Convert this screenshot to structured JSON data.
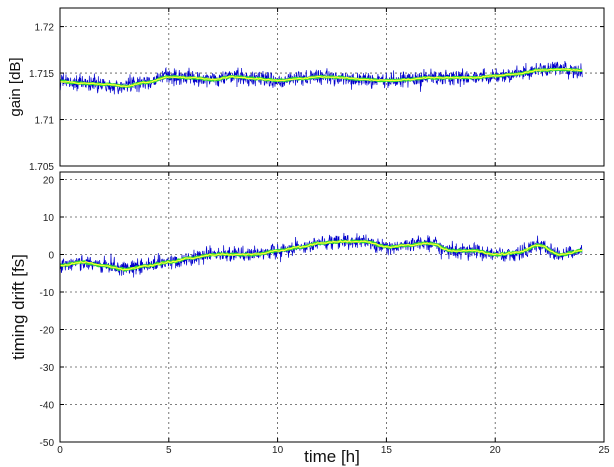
{
  "chart_data": [
    {
      "type": "line",
      "title": "",
      "xlabel": "",
      "ylabel": "gain [dB]",
      "xlim": [
        0,
        25
      ],
      "ylim": [
        1.705,
        1.722
      ],
      "xticks": [
        0,
        5,
        10,
        15,
        20,
        25
      ],
      "xtick_labels": [
        "",
        "",
        "",
        "",
        "",
        ""
      ],
      "yticks": [
        1.705,
        1.71,
        1.715,
        1.72
      ],
      "ytick_labels": [
        "1.705",
        "1.71",
        "1.715",
        "1.72"
      ],
      "grid": true,
      "legend": "none",
      "x_range": [
        0,
        24
      ],
      "series": [
        {
          "color": "#0000cc",
          "style": "raw-noisy",
          "x": [
            0,
            1,
            2,
            3,
            4,
            5,
            6,
            7,
            8,
            9,
            10,
            11,
            12,
            13,
            14,
            15,
            16,
            17,
            18,
            19,
            20,
            21,
            22,
            23,
            24
          ],
          "values": [
            1.7141,
            1.7139,
            1.7138,
            1.7136,
            1.714,
            1.7146,
            1.7145,
            1.7143,
            1.7146,
            1.7144,
            1.7142,
            1.7144,
            1.7146,
            1.7145,
            1.7143,
            1.7142,
            1.7143,
            1.7145,
            1.7145,
            1.7145,
            1.7147,
            1.7149,
            1.7153,
            1.7154,
            1.7153
          ],
          "noise_amplitude": 0.0012
        },
        {
          "color": "#33dd33",
          "style": "smoothed",
          "x": [
            0,
            1,
            2,
            3,
            4,
            5,
            6,
            7,
            8,
            9,
            10,
            11,
            12,
            13,
            14,
            15,
            16,
            17,
            18,
            19,
            20,
            21,
            22,
            23,
            24
          ],
          "values": [
            1.7141,
            1.7139,
            1.7138,
            1.7136,
            1.714,
            1.7146,
            1.7145,
            1.7143,
            1.7146,
            1.7144,
            1.7142,
            1.7144,
            1.7146,
            1.7145,
            1.7143,
            1.7142,
            1.7143,
            1.7145,
            1.7145,
            1.7145,
            1.7147,
            1.7149,
            1.7153,
            1.7154,
            1.7153
          ]
        },
        {
          "color": "#ffff33",
          "style": "smoothed",
          "x": [
            0,
            1,
            2,
            3,
            4,
            5,
            6,
            7,
            8,
            9,
            10,
            11,
            12,
            13,
            14,
            15,
            16,
            17,
            18,
            19,
            20,
            21,
            22,
            23,
            24
          ],
          "values": [
            1.7141,
            1.7139,
            1.7138,
            1.7136,
            1.714,
            1.7146,
            1.7145,
            1.7143,
            1.7146,
            1.7144,
            1.7142,
            1.7144,
            1.7146,
            1.7145,
            1.7143,
            1.7142,
            1.7143,
            1.7145,
            1.7145,
            1.7145,
            1.7147,
            1.7149,
            1.7153,
            1.7154,
            1.7153
          ]
        }
      ]
    },
    {
      "type": "line",
      "title": "",
      "xlabel": "time [h]",
      "ylabel": "timing drift [fs]",
      "xlim": [
        0,
        25
      ],
      "ylim": [
        -50,
        22
      ],
      "xticks": [
        0,
        5,
        10,
        15,
        20,
        25
      ],
      "xtick_labels": [
        "0",
        "5",
        "10",
        "15",
        "20",
        "25"
      ],
      "yticks": [
        -50,
        -40,
        -30,
        -20,
        -10,
        0,
        10,
        20
      ],
      "ytick_labels": [
        "-50",
        "-40",
        "-30",
        "-20",
        "-10",
        "0",
        "10",
        "20"
      ],
      "grid": true,
      "legend": "none",
      "x_range": [
        0,
        24
      ],
      "series": [
        {
          "color": "#0000cc",
          "style": "raw-noisy",
          "x": [
            0,
            1,
            2,
            3,
            4,
            5,
            6,
            7,
            8,
            9,
            10,
            11,
            12,
            13,
            14,
            15,
            16,
            17,
            18,
            19,
            20,
            21,
            22,
            23,
            24
          ],
          "values": [
            -3,
            -2,
            -3,
            -4,
            -3,
            -2,
            -1,
            0,
            0,
            0,
            1,
            2,
            3,
            3.5,
            3.5,
            2,
            2.5,
            3,
            1,
            1,
            0,
            0.5,
            2.5,
            0,
            1
          ],
          "noise_amplitude": 3
        },
        {
          "color": "#33dd33",
          "style": "smoothed",
          "x": [
            0,
            1,
            2,
            3,
            4,
            5,
            6,
            7,
            8,
            9,
            10,
            11,
            12,
            13,
            14,
            15,
            16,
            17,
            18,
            19,
            20,
            21,
            22,
            23,
            24
          ],
          "values": [
            -3,
            -2,
            -3,
            -4,
            -3,
            -2,
            -1,
            0,
            0,
            0,
            1,
            2,
            3,
            3.5,
            3.5,
            2,
            2.5,
            3,
            1,
            1,
            0,
            0.5,
            2.5,
            0,
            1
          ]
        },
        {
          "color": "#ffff33",
          "style": "smoothed",
          "x": [
            0,
            1,
            2,
            3,
            4,
            5,
            6,
            7,
            8,
            9,
            10,
            11,
            12,
            13,
            14,
            15,
            16,
            17,
            18,
            19,
            20,
            21,
            22,
            23,
            24
          ],
          "values": [
            -3,
            -2,
            -3,
            -4,
            -3,
            -2,
            -1,
            0,
            0,
            0,
            1,
            2,
            3,
            3.5,
            3.5,
            2,
            2.5,
            3,
            1,
            1,
            0,
            0.5,
            2.5,
            0,
            1
          ]
        }
      ]
    }
  ]
}
